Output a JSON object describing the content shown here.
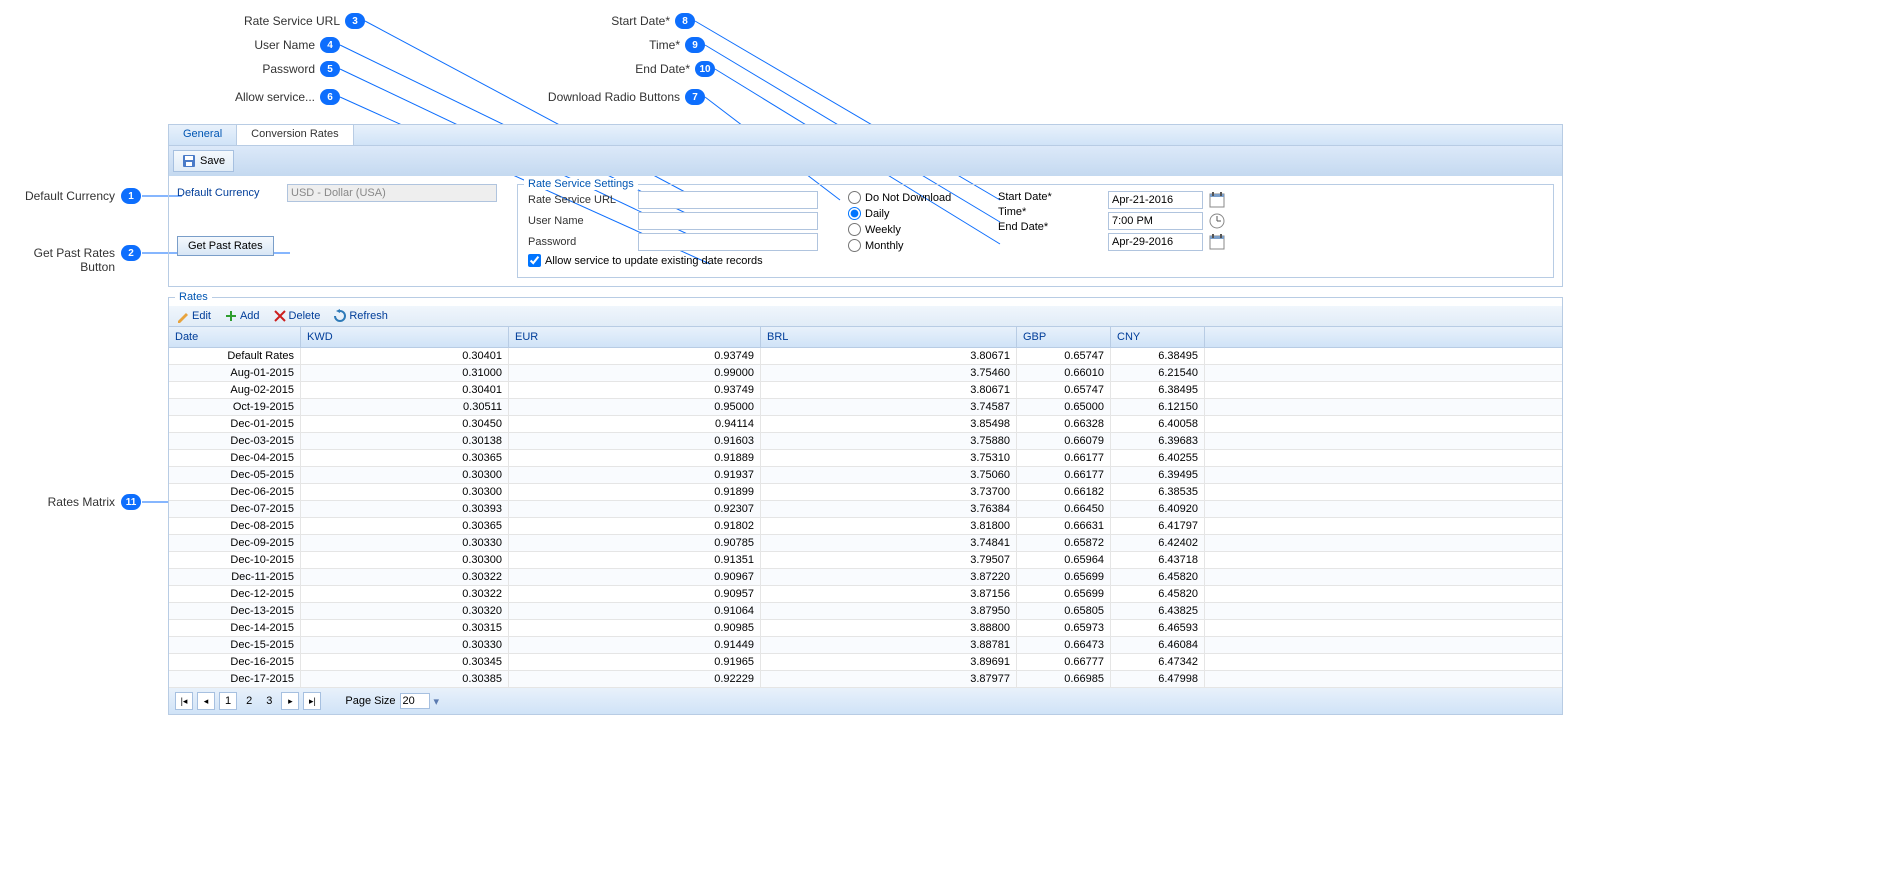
{
  "callouts": {
    "c1": {
      "label": "Default Currency",
      "num": "1"
    },
    "c2": {
      "label": "Get Past Rates Button",
      "num": "2"
    },
    "c3": {
      "label": "Rate Service URL",
      "num": "3"
    },
    "c4": {
      "label": "User Name",
      "num": "4"
    },
    "c5": {
      "label": "Password",
      "num": "5"
    },
    "c6": {
      "label": "Allow service...",
      "num": "6"
    },
    "c7": {
      "label": "Download Radio Buttons",
      "num": "7"
    },
    "c8": {
      "label": "Start Date*",
      "num": "8"
    },
    "c9": {
      "label": "Time*",
      "num": "9"
    },
    "c10": {
      "label": "End Date*",
      "num": "10"
    },
    "c11": {
      "label": "Rates Matrix",
      "num": "11"
    }
  },
  "tabs": {
    "general": "General",
    "conversion": "Conversion Rates"
  },
  "toolbar": {
    "save": "Save"
  },
  "defaultCurrency": {
    "label": "Default Currency",
    "value": "USD - Dollar (USA)"
  },
  "getPastRates": "Get Past Rates",
  "rateSettings": {
    "legend": "Rate Service Settings",
    "url_label": "Rate Service URL",
    "user_label": "User Name",
    "pass_label": "Password",
    "allow_label": "Allow service to update existing date records",
    "radio": {
      "none": "Do Not Download",
      "daily": "Daily",
      "weekly": "Weekly",
      "monthly": "Monthly"
    },
    "start_label": "Start Date*",
    "start_val": "Apr-21-2016",
    "time_label": "Time*",
    "time_val": "7:00 PM",
    "end_label": "End Date*",
    "end_val": "Apr-29-2016"
  },
  "rates": {
    "legend": "Rates",
    "toolbar": {
      "edit": "Edit",
      "add": "Add",
      "del": "Delete",
      "refresh": "Refresh"
    },
    "columns": {
      "date": "Date",
      "kwd": "KWD",
      "eur": "EUR",
      "brl": "BRL",
      "gbp": "GBP",
      "cny": "CNY"
    },
    "rows": [
      {
        "date": "Default Rates",
        "kwd": "0.30401",
        "eur": "0.93749",
        "brl": "3.80671",
        "gbp": "0.65747",
        "cny": "6.38495"
      },
      {
        "date": "Aug-01-2015",
        "kwd": "0.31000",
        "eur": "0.99000",
        "brl": "3.75460",
        "gbp": "0.66010",
        "cny": "6.21540"
      },
      {
        "date": "Aug-02-2015",
        "kwd": "0.30401",
        "eur": "0.93749",
        "brl": "3.80671",
        "gbp": "0.65747",
        "cny": "6.38495"
      },
      {
        "date": "Oct-19-2015",
        "kwd": "0.30511",
        "eur": "0.95000",
        "brl": "3.74587",
        "gbp": "0.65000",
        "cny": "6.12150"
      },
      {
        "date": "Dec-01-2015",
        "kwd": "0.30450",
        "eur": "0.94114",
        "brl": "3.85498",
        "gbp": "0.66328",
        "cny": "6.40058"
      },
      {
        "date": "Dec-03-2015",
        "kwd": "0.30138",
        "eur": "0.91603",
        "brl": "3.75880",
        "gbp": "0.66079",
        "cny": "6.39683"
      },
      {
        "date": "Dec-04-2015",
        "kwd": "0.30365",
        "eur": "0.91889",
        "brl": "3.75310",
        "gbp": "0.66177",
        "cny": "6.40255"
      },
      {
        "date": "Dec-05-2015",
        "kwd": "0.30300",
        "eur": "0.91937",
        "brl": "3.75060",
        "gbp": "0.66177",
        "cny": "6.39495"
      },
      {
        "date": "Dec-06-2015",
        "kwd": "0.30300",
        "eur": "0.91899",
        "brl": "3.73700",
        "gbp": "0.66182",
        "cny": "6.38535"
      },
      {
        "date": "Dec-07-2015",
        "kwd": "0.30393",
        "eur": "0.92307",
        "brl": "3.76384",
        "gbp": "0.66450",
        "cny": "6.40920"
      },
      {
        "date": "Dec-08-2015",
        "kwd": "0.30365",
        "eur": "0.91802",
        "brl": "3.81800",
        "gbp": "0.66631",
        "cny": "6.41797"
      },
      {
        "date": "Dec-09-2015",
        "kwd": "0.30330",
        "eur": "0.90785",
        "brl": "3.74841",
        "gbp": "0.65872",
        "cny": "6.42402"
      },
      {
        "date": "Dec-10-2015",
        "kwd": "0.30300",
        "eur": "0.91351",
        "brl": "3.79507",
        "gbp": "0.65964",
        "cny": "6.43718"
      },
      {
        "date": "Dec-11-2015",
        "kwd": "0.30322",
        "eur": "0.90967",
        "brl": "3.87220",
        "gbp": "0.65699",
        "cny": "6.45820"
      },
      {
        "date": "Dec-12-2015",
        "kwd": "0.30322",
        "eur": "0.90957",
        "brl": "3.87156",
        "gbp": "0.65699",
        "cny": "6.45820"
      },
      {
        "date": "Dec-13-2015",
        "kwd": "0.30320",
        "eur": "0.91064",
        "brl": "3.87950",
        "gbp": "0.65805",
        "cny": "6.43825"
      },
      {
        "date": "Dec-14-2015",
        "kwd": "0.30315",
        "eur": "0.90985",
        "brl": "3.88800",
        "gbp": "0.65973",
        "cny": "6.46593"
      },
      {
        "date": "Dec-15-2015",
        "kwd": "0.30330",
        "eur": "0.91449",
        "brl": "3.88781",
        "gbp": "0.66473",
        "cny": "6.46084"
      },
      {
        "date": "Dec-16-2015",
        "kwd": "0.30345",
        "eur": "0.91965",
        "brl": "3.89691",
        "gbp": "0.66777",
        "cny": "6.47342"
      },
      {
        "date": "Dec-17-2015",
        "kwd": "0.30385",
        "eur": "0.92229",
        "brl": "3.87977",
        "gbp": "0.66985",
        "cny": "6.47998"
      }
    ],
    "pager": {
      "pages": [
        "1",
        "2",
        "3"
      ],
      "page_size_label": "Page Size",
      "page_size": "20"
    }
  }
}
